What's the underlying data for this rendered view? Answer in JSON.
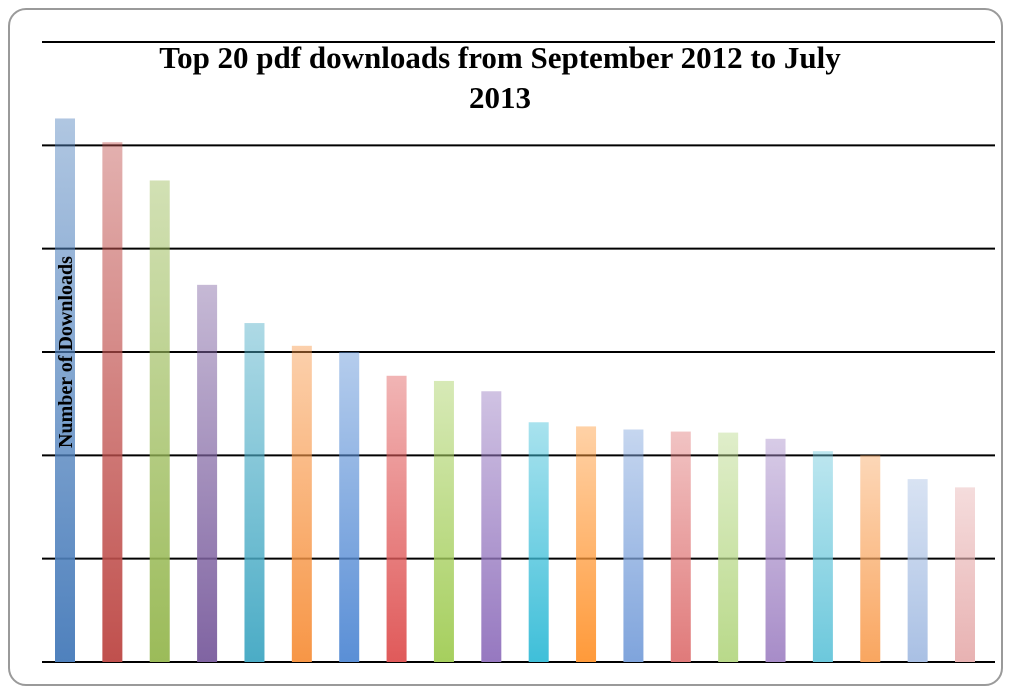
{
  "chart_data": {
    "type": "bar",
    "title": "Top 20 pdf downloads from September 2012 to July 2013",
    "y_label": "Number of Downloads",
    "categories": [
      null,
      null,
      null,
      null,
      null,
      null,
      null,
      null,
      null,
      null,
      null,
      null,
      null,
      null,
      null,
      null,
      null,
      null,
      null,
      null
    ],
    "values": [
      5.26,
      5.03,
      4.66,
      3.65,
      3.28,
      3.06,
      3.0,
      2.77,
      2.72,
      2.62,
      2.32,
      2.28,
      2.25,
      2.23,
      2.22,
      2.16,
      2.04,
      2.0,
      1.77,
      1.69
    ],
    "colors": [
      "#4f81bd",
      "#c0504d",
      "#9bbb59",
      "#8064a2",
      "#4bacc6",
      "#f79646",
      "#5a8fd6",
      "#e05a5a",
      "#a6cf5e",
      "#9678c0",
      "#3fbfd9",
      "#ff9a3a",
      "#7fa4dc",
      "#e07a7a",
      "#b9d98a",
      "#a78cc8",
      "#6cc8dc",
      "#f9a660",
      "#a9c0e4",
      "#e8b2b2"
    ],
    "ylim": [
      0,
      6
    ],
    "yticks": [
      0,
      1,
      2,
      3,
      4,
      5,
      6
    ],
    "grid": true
  }
}
